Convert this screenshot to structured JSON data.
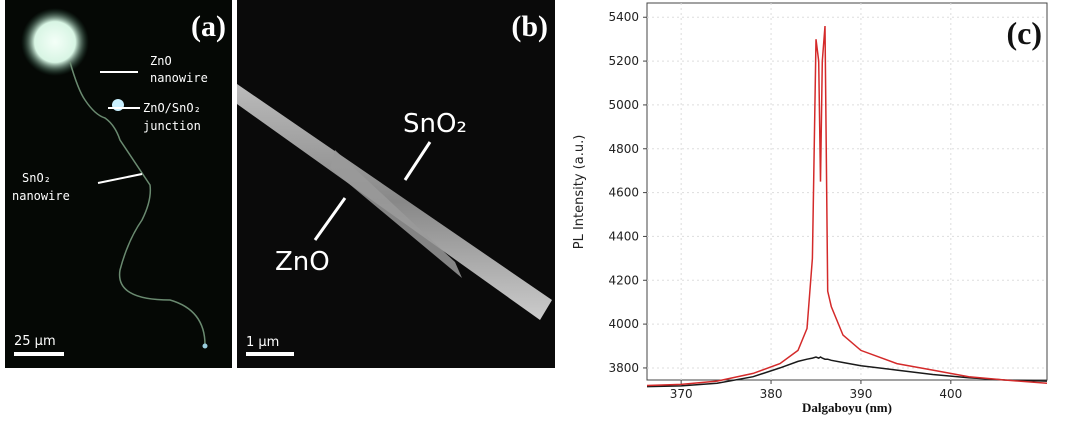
{
  "panel_a": {
    "label": "(a)",
    "zno_label": [
      "ZnO",
      "nanowire"
    ],
    "junction_label": [
      "ZnO/SnO₂",
      "junction"
    ],
    "sno2_label": [
      "SnO₂",
      "nanowire"
    ],
    "scale": "25 µm"
  },
  "panel_b": {
    "label": "(b)",
    "sno2_label": "SnO₂",
    "zno_label": "ZnO",
    "scale": "1 µm"
  },
  "chart_data": {
    "type": "line",
    "panel_label": "(c)",
    "y_label": "PL Intensity (a.u.)",
    "x_label": "Dalgaboyu (nm)",
    "x": [
      366.2,
      370,
      374,
      378,
      381,
      383,
      384,
      384.6,
      385,
      385.3,
      385.5,
      385.7,
      386,
      386.3,
      386.7,
      388,
      390,
      394,
      398,
      402,
      406,
      410.7
    ],
    "series": [
      {
        "color": "#d42a2a",
        "values": [
          3720,
          3725,
          3740,
          3775,
          3820,
          3880,
          3980,
          4300,
          5300,
          5200,
          4650,
          5200,
          5360,
          4150,
          4080,
          3950,
          3880,
          3820,
          3790,
          3760,
          3745,
          3730
        ]
      },
      {
        "color": "#1a1a1a",
        "values": [
          3715,
          3718,
          3730,
          3760,
          3800,
          3830,
          3840,
          3845,
          3850,
          3845,
          3850,
          3845,
          3840,
          3840,
          3835,
          3825,
          3810,
          3790,
          3770,
          3755,
          3745,
          3740
        ]
      }
    ],
    "xlim": [
      366.2,
      410.7
    ],
    "xticks": [
      370,
      380,
      390,
      400
    ],
    "ylim": [
      3745,
      5465
    ],
    "yticks": [
      3800,
      4000,
      4200,
      4400,
      4600,
      4800,
      5000,
      5200,
      5400
    ],
    "grid": true
  }
}
